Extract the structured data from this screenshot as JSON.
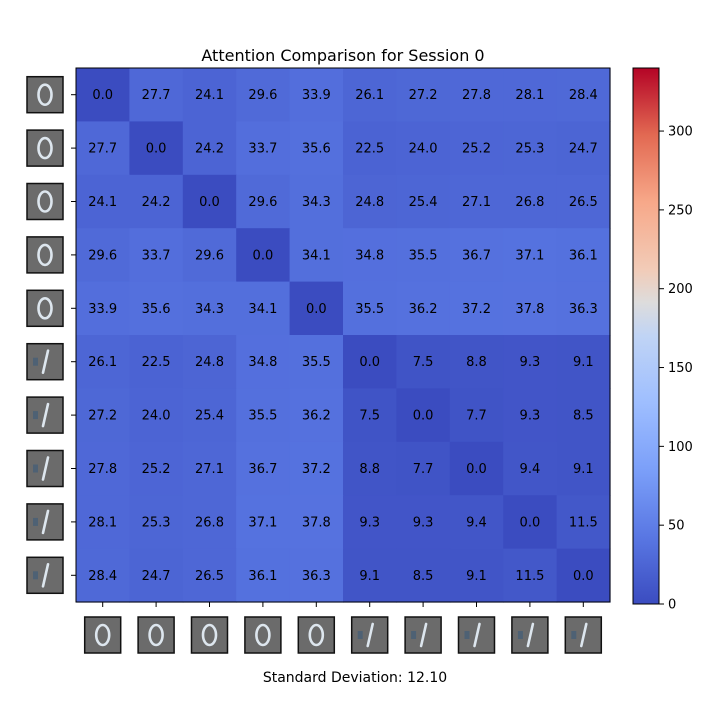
{
  "chart_data": {
    "type": "heatmap",
    "title": "Attention Comparison for Session 0",
    "row_thumbnails": [
      "digit-0",
      "digit-0",
      "digit-0",
      "digit-0",
      "digit-0",
      "digit-1",
      "digit-1",
      "digit-1",
      "digit-1",
      "digit-1"
    ],
    "col_thumbnails": [
      "digit-0",
      "digit-0",
      "digit-0",
      "digit-0",
      "digit-0",
      "digit-1",
      "digit-1",
      "digit-1",
      "digit-1",
      "digit-1"
    ],
    "matrix": [
      [
        0.0,
        27.7,
        24.1,
        29.6,
        33.9,
        26.1,
        27.2,
        27.8,
        28.1,
        28.4
      ],
      [
        27.7,
        0.0,
        24.2,
        33.7,
        35.6,
        22.5,
        24.0,
        25.2,
        25.3,
        24.7
      ],
      [
        24.1,
        24.2,
        0.0,
        29.6,
        34.3,
        24.8,
        25.4,
        27.1,
        26.8,
        26.5
      ],
      [
        29.6,
        33.7,
        29.6,
        0.0,
        34.1,
        34.8,
        35.5,
        36.7,
        37.1,
        36.1
      ],
      [
        33.9,
        35.6,
        34.3,
        34.1,
        0.0,
        35.5,
        36.2,
        37.2,
        37.8,
        36.3
      ],
      [
        26.1,
        22.5,
        24.8,
        34.8,
        35.5,
        0.0,
        7.5,
        8.8,
        9.3,
        9.1
      ],
      [
        27.2,
        24.0,
        25.4,
        35.5,
        36.2,
        7.5,
        0.0,
        7.7,
        9.3,
        8.5
      ],
      [
        27.8,
        25.2,
        27.1,
        36.7,
        37.2,
        8.8,
        7.7,
        0.0,
        9.4,
        9.1
      ],
      [
        28.1,
        25.3,
        26.8,
        37.1,
        37.8,
        9.3,
        9.3,
        9.4,
        0.0,
        11.5
      ],
      [
        28.4,
        24.7,
        26.5,
        36.1,
        36.3,
        9.1,
        8.5,
        9.1,
        11.5,
        0.0
      ]
    ],
    "colorbar": {
      "colormap": "coolwarm",
      "range": [
        0,
        340
      ],
      "ticks": [
        "0",
        "50",
        "100",
        "150",
        "200",
        "250",
        "300"
      ]
    },
    "grid": false,
    "caption": "Standard Deviation: 12.10"
  }
}
